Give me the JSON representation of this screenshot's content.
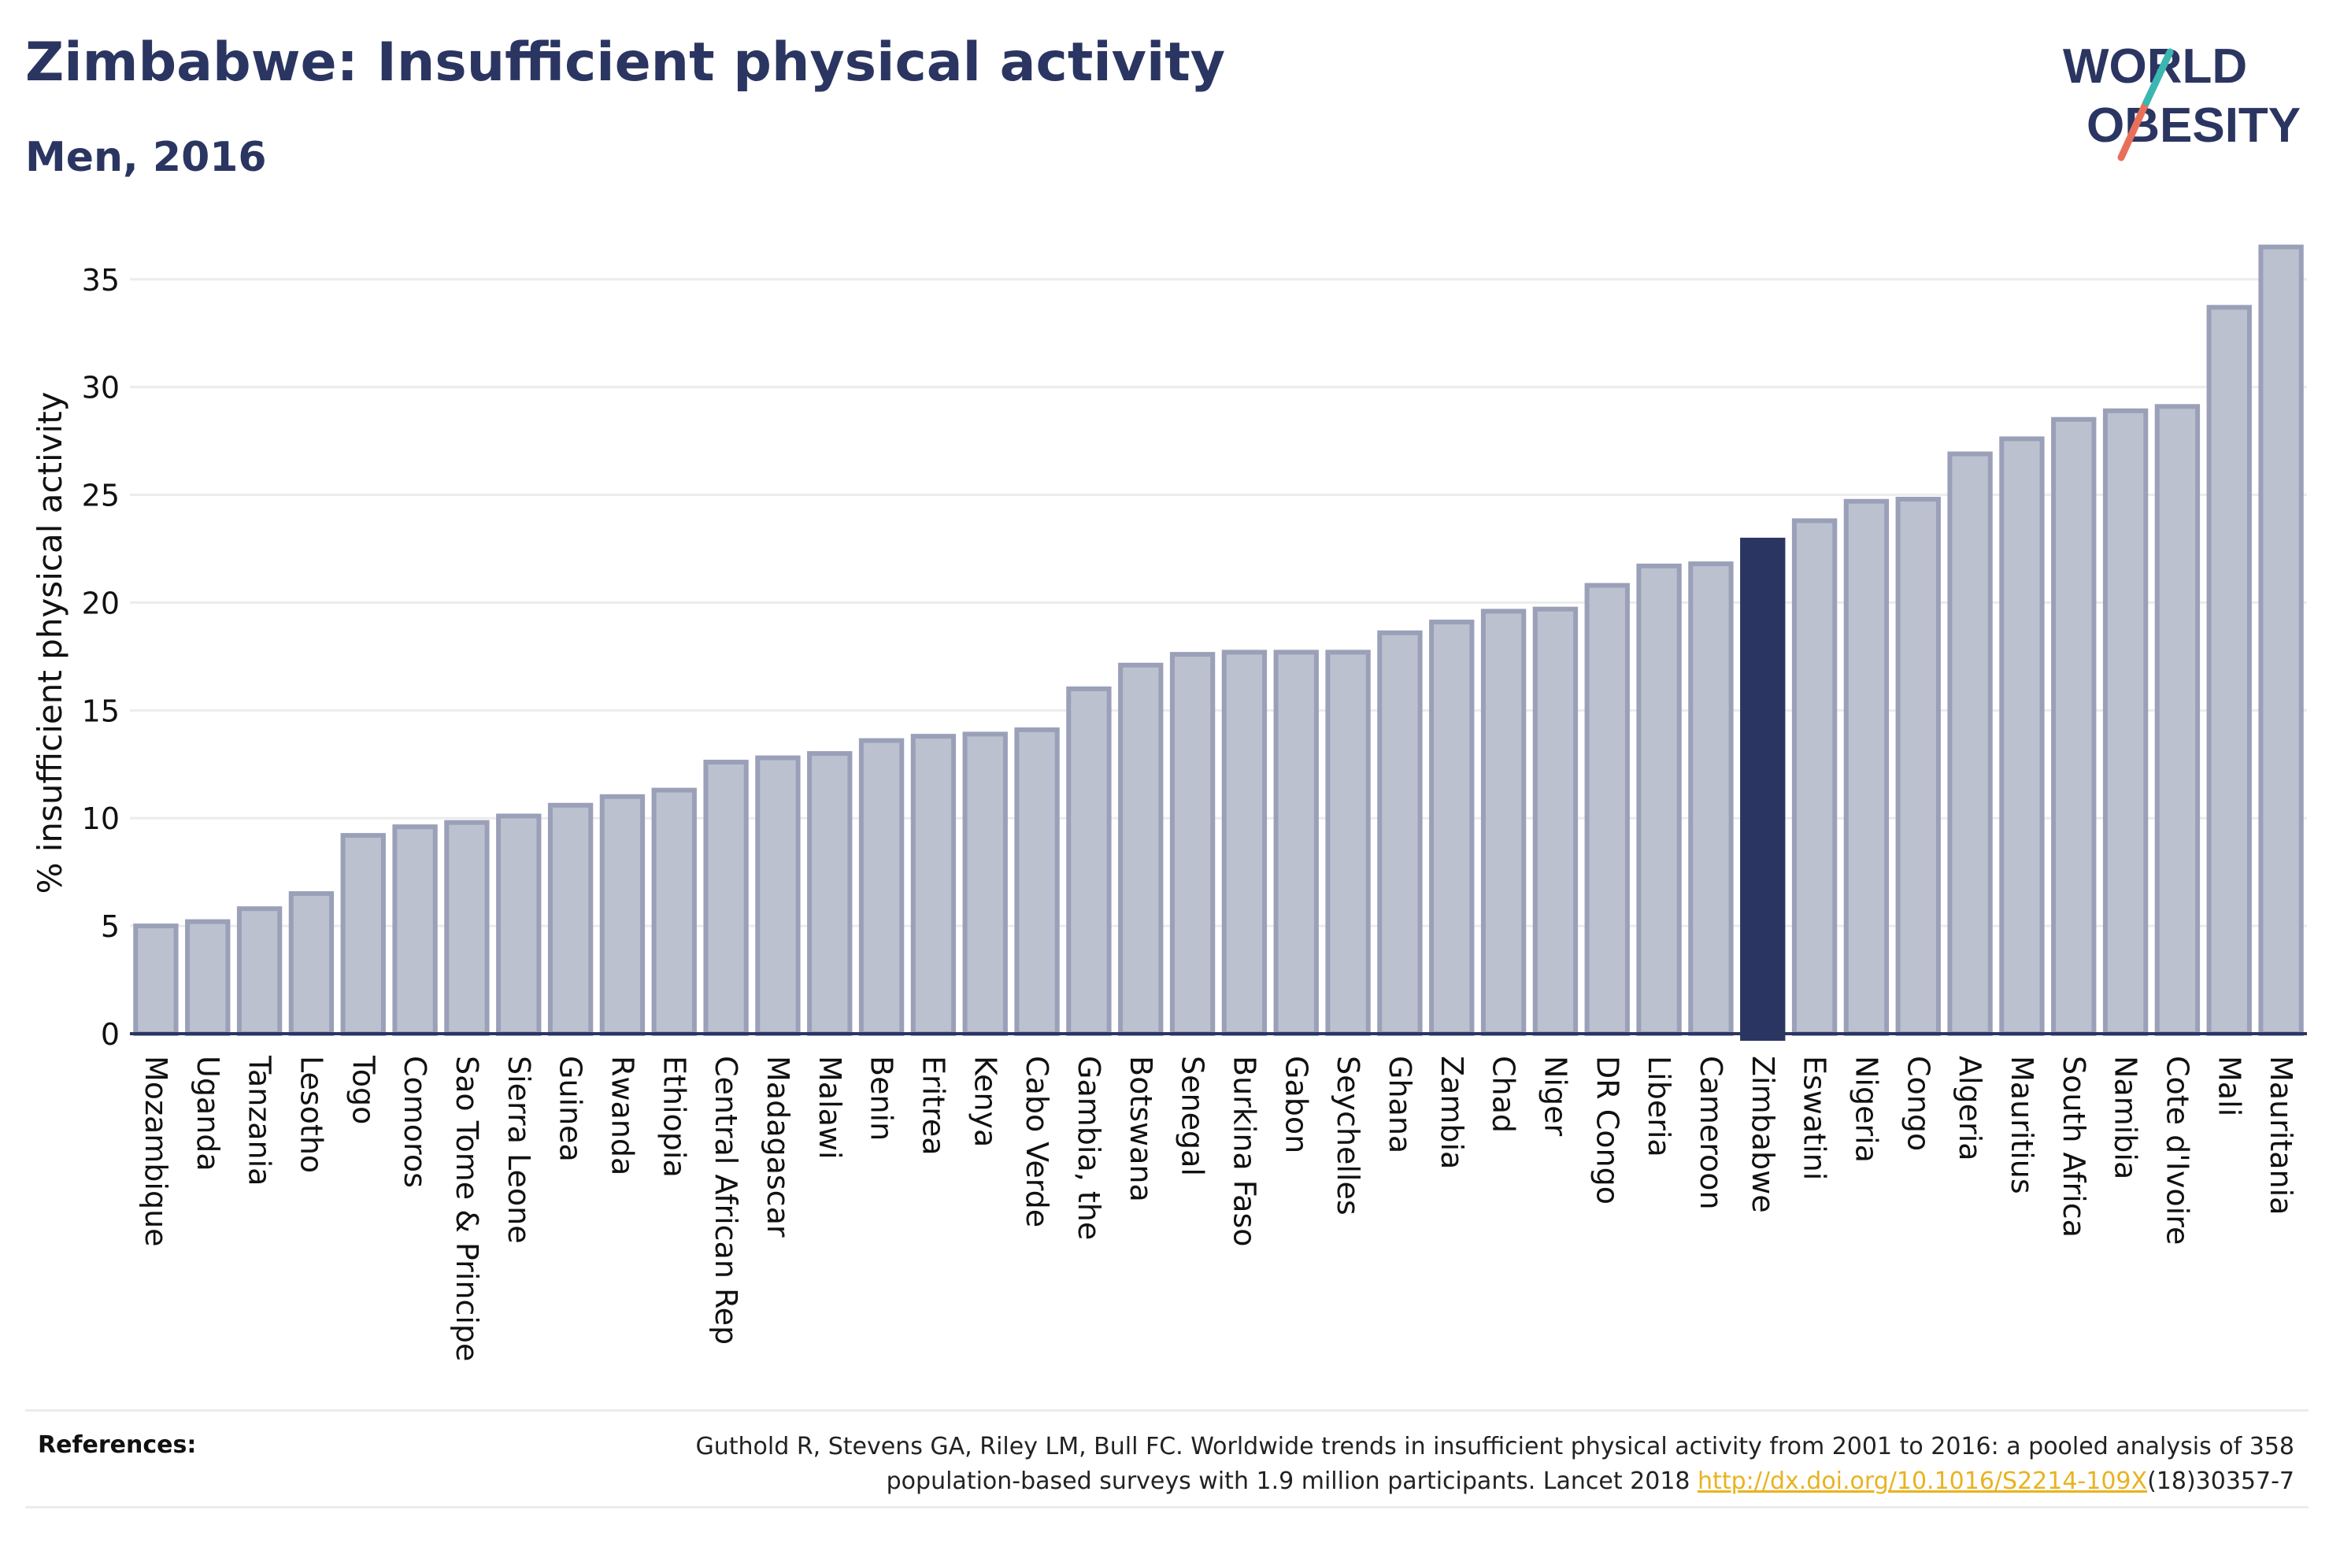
{
  "title": "Zimbabwe: Insufficient physical activity",
  "subtitle": "Men, 2016",
  "logo": {
    "line1": "WORLD",
    "line2": "OBESITY"
  },
  "references": {
    "label": "References:",
    "text1": "Guthold R, Stevens GA, Riley LM, Bull FC. Worldwide trends in insufficient physical activity from 2001 to 2016: a pooled analysis of 358",
    "text2": "population-based surveys with 1.9 million participants. Lancet 2018 ",
    "link": "http://dx.doi.org/10.1016/S2214-109X",
    "text3": "(18)30357-7"
  },
  "colors": {
    "bar": "#bcc1d0",
    "bar_border": "#9aa0b8",
    "highlight": "#2b3561",
    "link": "#e8b320",
    "text": "#2b3561"
  },
  "chart_data": {
    "type": "bar",
    "ylabel": "% insufficient physical activity",
    "xlabel": "",
    "ylim": [
      0,
      37
    ],
    "yticks": [
      0,
      5,
      10,
      15,
      20,
      25,
      30,
      35
    ],
    "grid": true,
    "highlight": "Zimbabwe",
    "categories": [
      "Mozambique",
      "Uganda",
      "Tanzania",
      "Lesotho",
      "Togo",
      "Comoros",
      "Sao Tome & Principe",
      "Sierra Leone",
      "Guinea",
      "Rwanda",
      "Ethiopia",
      "Central African Rep",
      "Madagascar",
      "Malawi",
      "Benin",
      "Eritrea",
      "Kenya",
      "Cabo Verde",
      "Gambia, the",
      "Botswana",
      "Senegal",
      "Burkina Faso",
      "Gabon",
      "Seychelles",
      "Ghana",
      "Zambia",
      "Chad",
      "Niger",
      "DR Congo",
      "Liberia",
      "Cameroon",
      "Zimbabwe",
      "Eswatini",
      "Nigeria",
      "Congo",
      "Algeria",
      "Mauritius",
      "South Africa",
      "Namibia",
      "Cote d'Ivoire",
      "Mali",
      "Mauritania"
    ],
    "values": [
      5.0,
      5.2,
      5.8,
      6.5,
      9.2,
      9.6,
      9.8,
      10.1,
      10.6,
      11.0,
      11.3,
      12.6,
      12.8,
      13.0,
      13.6,
      13.8,
      13.9,
      14.1,
      16.0,
      17.1,
      17.6,
      17.7,
      17.7,
      17.7,
      18.6,
      19.1,
      19.6,
      19.7,
      20.8,
      21.7,
      21.8,
      22.9,
      23.8,
      24.7,
      24.8,
      26.9,
      27.6,
      28.5,
      28.9,
      29.1,
      33.7,
      36.5
    ]
  }
}
